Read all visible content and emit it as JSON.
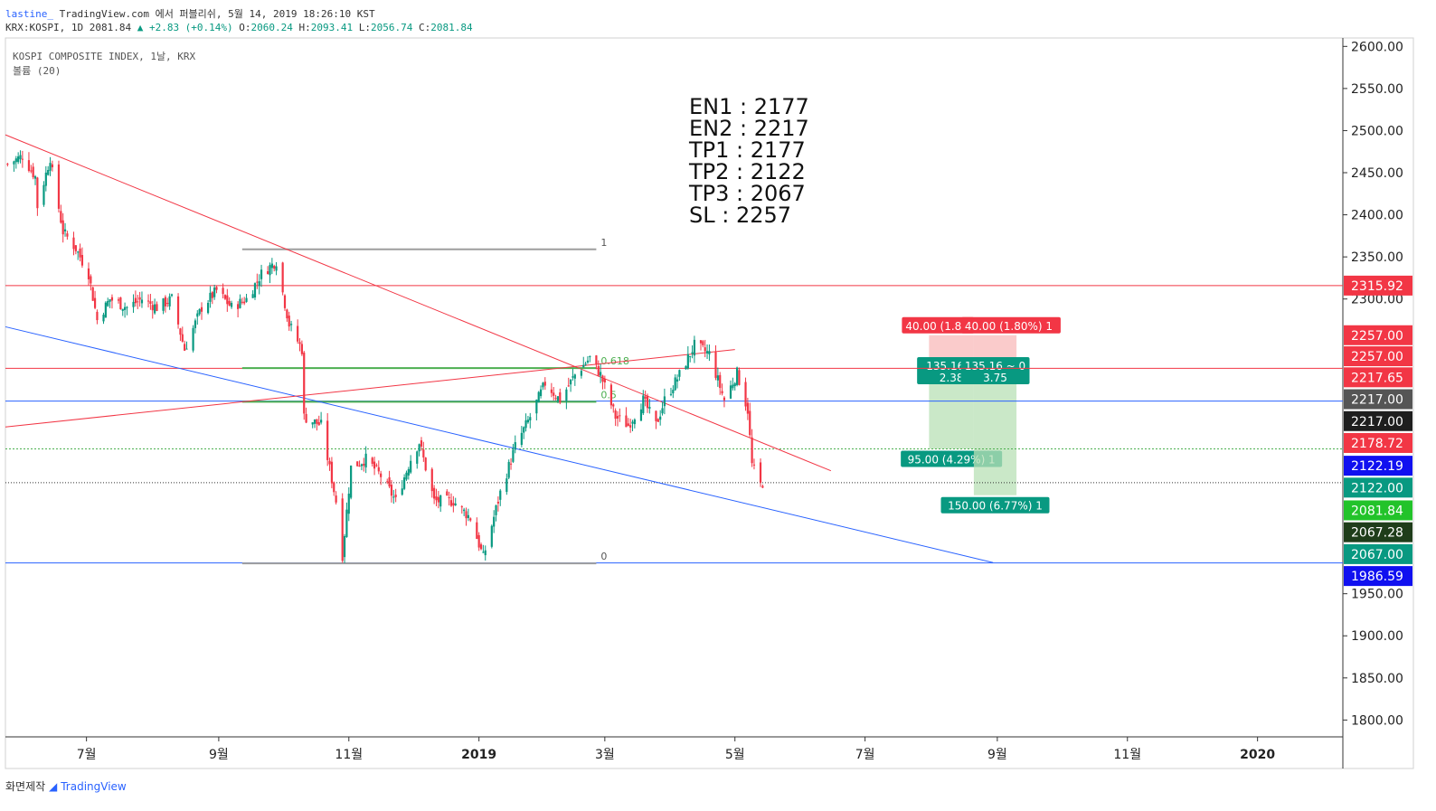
{
  "header": {
    "author": "lastine_",
    "published": "TradingView.com 에서 퍼블리쉬, 5월 14, 2019 18:26:10 KST",
    "symbol": "KRX:KOSPI, 1D 2081.84",
    "change": "▲ +2.83 (+0.14%)",
    "o_label": "O:",
    "o_value": "2060.24",
    "h_label": "H:",
    "h_value": "2093.41",
    "l_label": "L:",
    "l_value": "2056.74",
    "c_label": "C:",
    "c_value": "2081.84"
  },
  "pane": {
    "title": "KOSPI COMPOSITE INDEX, 1날, KRX",
    "indicator": "볼륨 (20)"
  },
  "notes": [
    "EN1 : 2177",
    "EN2 : 2217",
    "TP1 : 2177",
    "TP2 : 2122",
    "TP3 : 2067",
    "SL : 2257"
  ],
  "footer": {
    "left": "화면제작",
    "brand": "TradingView"
  },
  "colors": {
    "up": "#089981",
    "down": "#f23645",
    "red_line": "#f23645",
    "blue_line": "#2962ff",
    "green_line": "#4caf50",
    "fib_gray": "#9e9e9e"
  },
  "chart_data": {
    "type": "candlestick",
    "ylim": [
      1780,
      2610
    ],
    "y_ticks": [
      1800,
      1850,
      1900,
      1950,
      2300,
      2350,
      2400,
      2450,
      2500,
      2550,
      2600
    ],
    "y_tick_labels": [
      "1800.00",
      "1850.00",
      "1900.00",
      "1950.00",
      "2300.00",
      "2350.00",
      "2400.00",
      "2450.00",
      "2500.00",
      "2550.00",
      "2600.00"
    ],
    "x_ticks": [
      {
        "label": "7월",
        "date": "2018-07-01",
        "bold": false
      },
      {
        "label": "9월",
        "date": "2018-09-01",
        "bold": false
      },
      {
        "label": "11월",
        "date": "2018-11-01",
        "bold": false
      },
      {
        "label": "2019",
        "date": "2019-01-01",
        "bold": true
      },
      {
        "label": "3월",
        "date": "2019-03-01",
        "bold": false
      },
      {
        "label": "5월",
        "date": "2019-05-01",
        "bold": false
      },
      {
        "label": "7월",
        "date": "2019-07-01",
        "bold": false
      },
      {
        "label": "9월",
        "date": "2019-09-01",
        "bold": false
      },
      {
        "label": "11월",
        "date": "2019-11-01",
        "bold": false
      },
      {
        "label": "2020",
        "date": "2020-01-01",
        "bold": true
      }
    ],
    "xlim": [
      "2018-05-24",
      "2020-02-10"
    ],
    "close_series": {
      "start": "2018-05-25",
      "end": "2019-05-14",
      "anchors": [
        [
          "2018-05-25",
          2460
        ],
        [
          "2018-06-01",
          2470
        ],
        [
          "2018-06-07",
          2445
        ],
        [
          "2018-06-08",
          2410
        ],
        [
          "2018-06-14",
          2468
        ],
        [
          "2018-06-15",
          2450
        ],
        [
          "2018-06-20",
          2380
        ],
        [
          "2018-06-26",
          2360
        ],
        [
          "2018-07-02",
          2330
        ],
        [
          "2018-07-06",
          2275
        ],
        [
          "2018-07-12",
          2300
        ],
        [
          "2018-07-20",
          2290
        ],
        [
          "2018-07-27",
          2300
        ],
        [
          "2018-08-03",
          2290
        ],
        [
          "2018-08-10",
          2300
        ],
        [
          "2018-08-16",
          2240
        ],
        [
          "2018-08-24",
          2290
        ],
        [
          "2018-08-31",
          2310
        ],
        [
          "2018-09-07",
          2290
        ],
        [
          "2018-09-14",
          2300
        ],
        [
          "2018-09-21",
          2330
        ],
        [
          "2018-09-28",
          2345
        ],
        [
          "2018-10-04",
          2270
        ],
        [
          "2018-10-10",
          2240
        ],
        [
          "2018-10-11",
          2160
        ],
        [
          "2018-10-19",
          2150
        ],
        [
          "2018-10-26",
          2060
        ],
        [
          "2018-10-29",
          1996
        ],
        [
          "2018-11-02",
          2100
        ],
        [
          "2018-11-09",
          2110
        ],
        [
          "2018-11-16",
          2090
        ],
        [
          "2018-11-23",
          2060
        ],
        [
          "2018-11-30",
          2110
        ],
        [
          "2018-12-04",
          2130
        ],
        [
          "2018-12-11",
          2060
        ],
        [
          "2018-12-20",
          2060
        ],
        [
          "2018-12-28",
          2040
        ],
        [
          "2019-01-03",
          1993
        ],
        [
          "2019-01-11",
          2070
        ],
        [
          "2019-01-18",
          2125
        ],
        [
          "2019-01-25",
          2160
        ],
        [
          "2019-02-01",
          2200
        ],
        [
          "2019-02-08",
          2180
        ],
        [
          "2019-02-15",
          2210
        ],
        [
          "2019-02-22",
          2230
        ],
        [
          "2019-02-27",
          2210
        ],
        [
          "2019-03-06",
          2160
        ],
        [
          "2019-03-12",
          2150
        ],
        [
          "2019-03-19",
          2180
        ],
        [
          "2019-03-25",
          2150
        ],
        [
          "2019-03-29",
          2180
        ],
        [
          "2019-04-05",
          2210
        ],
        [
          "2019-04-12",
          2245
        ],
        [
          "2019-04-19",
          2235
        ],
        [
          "2019-04-26",
          2180
        ],
        [
          "2019-05-02",
          2212
        ],
        [
          "2019-05-07",
          2168
        ],
        [
          "2019-05-09",
          2103
        ],
        [
          "2019-05-13",
          2079
        ],
        [
          "2019-05-14",
          2081.84
        ]
      ]
    },
    "horizontal_lines": [
      {
        "price": 2315.92,
        "color": "red"
      },
      {
        "price": 2217.65,
        "color": "red"
      },
      {
        "price": 2178.72,
        "color": "blue"
      },
      {
        "price": 2122.0,
        "color": "green",
        "dashed": true
      },
      {
        "price": 2081.84,
        "color": "black",
        "dashed": true
      },
      {
        "price": 1986.59,
        "color": "blue"
      }
    ],
    "trend_lines": [
      {
        "color": "red",
        "from": [
          "2018-05-24",
          2495
        ],
        "to": [
          "2019-06-15",
          2096
        ]
      },
      {
        "color": "blue",
        "from": [
          "2018-05-24",
          2267
        ],
        "to": [
          "2019-08-30",
          1987
        ]
      },
      {
        "color": "red",
        "from": [
          "2018-05-24",
          2148
        ],
        "to": [
          "2019-05-01",
          2240
        ]
      }
    ],
    "fib": {
      "start": "2018-09-12",
      "end": "2019-02-25",
      "levels": [
        {
          "label": "1",
          "price": 2359,
          "color": "gray"
        },
        {
          "label": "0.618",
          "price": 2218,
          "color": "green"
        },
        {
          "label": "0.5",
          "price": 2178,
          "color": "green"
        },
        {
          "label": "0",
          "price": 1986,
          "color": "gray"
        }
      ]
    },
    "positions": [
      {
        "start": "2019-07-31",
        "end": "2019-08-21",
        "entry": 2217,
        "stop": 2257,
        "target": 2122,
        "stop_label": "40.00 (1.80%) 1",
        "rr_label": [
          "135.16 ~",
          "2.38"
        ],
        "target_label": "95.00 (4.29%) 1"
      },
      {
        "start": "2019-08-21",
        "end": "2019-09-10",
        "entry": 2217,
        "stop": 2257,
        "target": 2067,
        "stop_label": "40.00 (1.80%) 1",
        "rr_label": [
          "135.16 ~ 0",
          "3.75"
        ],
        "target_label": "150.00 (6.77%) 1"
      }
    ],
    "price_labels": [
      {
        "text": "2315.92",
        "price": 2315.92,
        "bg": "#f23645"
      },
      {
        "text": "2257.00",
        "price": 2257.0,
        "bg": "#f23645"
      },
      {
        "text": "2257.00",
        "price": 2232.0,
        "bg": "#f23645"
      },
      {
        "text": "2217.65",
        "price": 2207.0,
        "bg": "#f23645"
      },
      {
        "text": "2217.00",
        "price": 2181.0,
        "bg": "#555555"
      },
      {
        "text": "2217.00",
        "price": 2155.0,
        "bg": "#1e1e1e"
      },
      {
        "text": "2178.72",
        "price": 2129.0,
        "bg": "#f23645"
      },
      {
        "text": "2122.19",
        "price": 2102.0,
        "bg": "#1010f0"
      },
      {
        "text": "2122.00",
        "price": 2076.0,
        "bg": "#089981"
      },
      {
        "text": "2081.84",
        "price": 2049.0,
        "bg": "#22c32a"
      },
      {
        "text": "2067.28",
        "price": 2023.0,
        "bg": "#1f3d1a"
      },
      {
        "text": "2067.00",
        "price": 1997.0,
        "bg": "#089981"
      },
      {
        "text": "1986.59",
        "price": 1971.0,
        "bg": "#1010f0"
      }
    ]
  }
}
